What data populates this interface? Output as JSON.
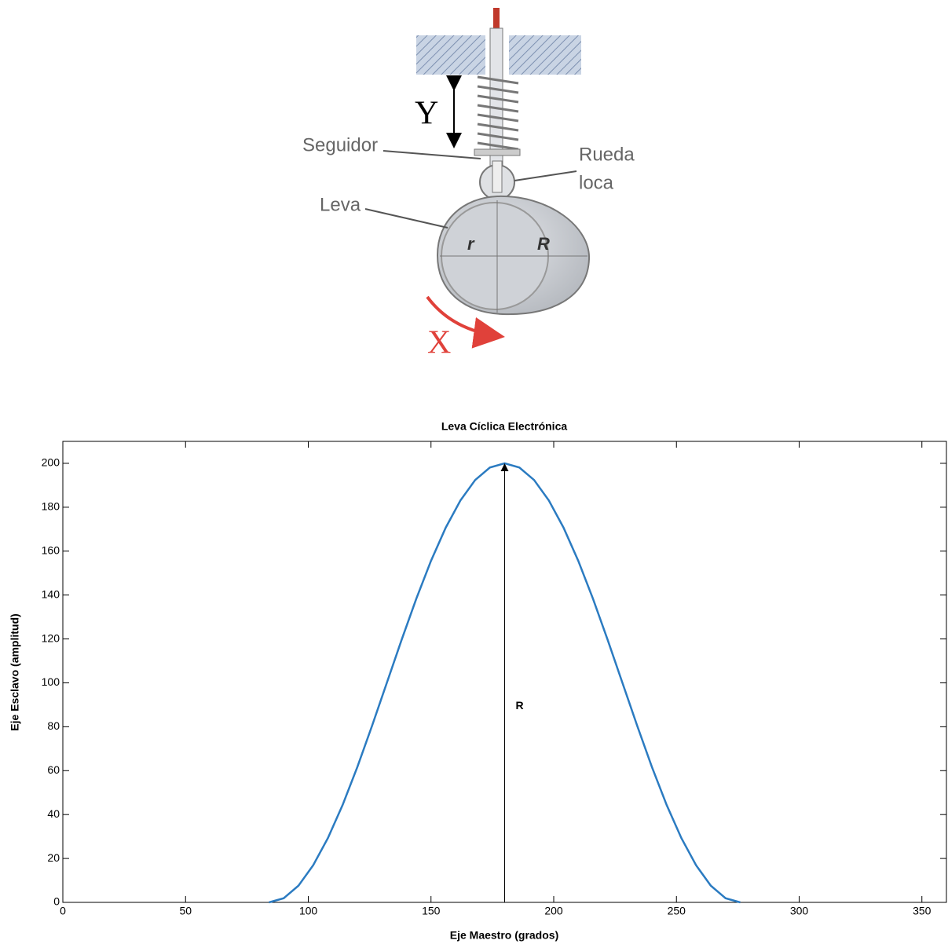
{
  "diagram": {
    "labels": {
      "y": "Y",
      "follower": "Seguidor",
      "wheel_1": "Rueda",
      "wheel_2": "loca",
      "cam": "Leva",
      "r": "r",
      "R": "R",
      "x": "X"
    }
  },
  "chart_data": {
    "type": "line",
    "title": "Leva Cíclica Electrónica",
    "x_label": "Eje Maestro (grados)",
    "y_label": "Eje Esclavo (amplitud)",
    "series": [
      {
        "color": "#2b7bc1",
        "x": [
          84,
          90,
          96,
          102,
          108,
          114,
          120,
          126,
          132,
          138,
          144,
          150,
          156,
          162,
          168,
          174,
          180,
          186,
          192,
          198,
          204,
          210,
          216,
          222,
          228,
          234,
          240,
          246,
          252,
          258,
          264,
          270,
          276
        ],
        "values": [
          0,
          1.9,
          7.6,
          16.9,
          29.3,
          44.4,
          61.7,
          80.5,
          100,
          119.5,
          138.3,
          155.6,
          170.7,
          183.1,
          192.4,
          198.1,
          200,
          198.1,
          192.4,
          183.1,
          170.7,
          155.6,
          138.3,
          119.5,
          100,
          80.5,
          61.7,
          44.4,
          29.3,
          16.9,
          7.6,
          1.9,
          0
        ]
      }
    ],
    "annotation": "R",
    "xlim": [
      0,
      360
    ],
    "xticks": [
      0,
      50,
      100,
      150,
      200,
      250,
      300,
      350
    ],
    "ylim": [
      0,
      210
    ],
    "yticks": [
      0,
      20,
      40,
      60,
      80,
      100,
      120,
      140,
      160,
      180,
      200
    ],
    "grid": false
  }
}
